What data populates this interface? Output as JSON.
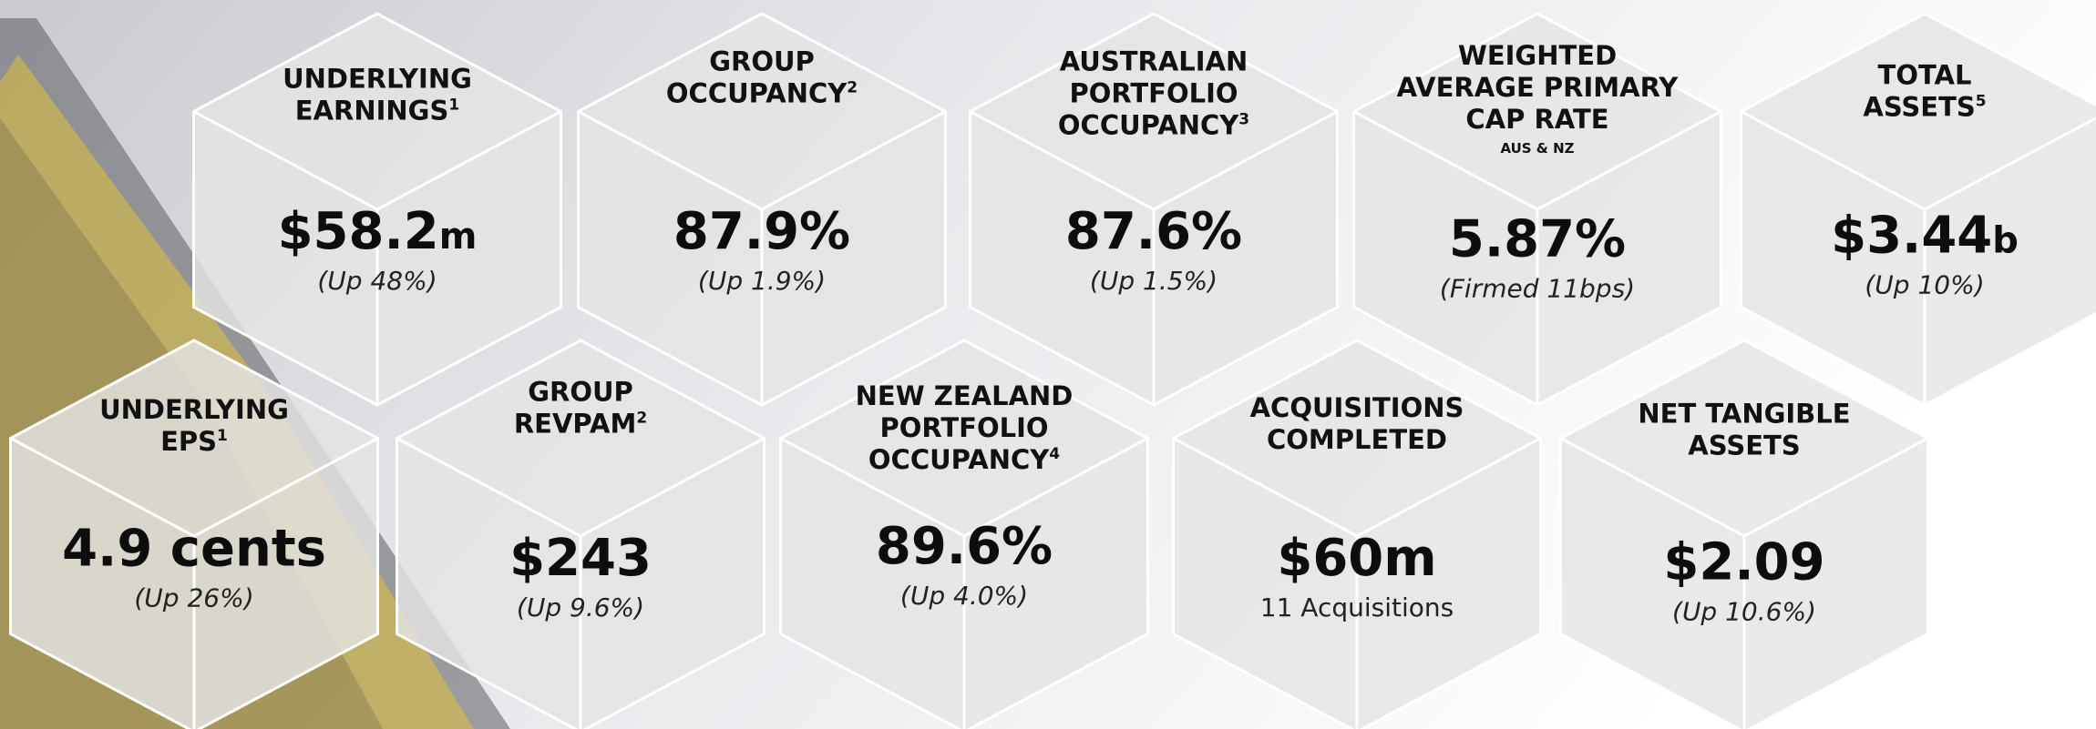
{
  "tiles": [
    {
      "title": [
        "UNDERLYING",
        "EARNINGS"
      ],
      "sup": "1",
      "value": "$58.2",
      "unit": "m",
      "note": "(Up 48%)"
    },
    {
      "title": [
        "GROUP",
        "OCCUPANCY"
      ],
      "sup": "2",
      "value": "87.9%",
      "note": "(Up 1.9%)"
    },
    {
      "title": [
        "AUSTRALIAN",
        "PORTFOLIO",
        "OCCUPANCY"
      ],
      "sup": "3",
      "value": "87.6%",
      "note": "(Up 1.5%)"
    },
    {
      "title": [
        "WEIGHTED",
        "AVERAGE PRIMARY",
        "CAP RATE"
      ],
      "small": "AUS & NZ",
      "value": "5.87%",
      "note": "(Firmed 11bps)"
    },
    {
      "title": [
        "TOTAL",
        "ASSETS"
      ],
      "sup": "5",
      "value": "$3.44",
      "unit": "b",
      "note": "(Up 10%)"
    },
    {
      "title": [
        "UNDERLYING",
        "EPS"
      ],
      "sup": "1",
      "value": "4.9 cents",
      "note": "(Up 26%)"
    },
    {
      "title": [
        "GROUP",
        "REVPAM"
      ],
      "sup": "2",
      "value": "$243",
      "note": "(Up 9.6%)"
    },
    {
      "title": [
        "NEW ZEALAND",
        "PORTFOLIO",
        "OCCUPANCY"
      ],
      "sup": "4",
      "value": "89.6%",
      "note": "(Up 4.0%)"
    },
    {
      "title": [
        "ACQUISITIONS",
        "COMPLETED"
      ],
      "value": "$60m",
      "note": "11 Acquisitions"
    },
    {
      "title": [
        "NET TANGIBLE",
        "ASSETS"
      ],
      "value": "$2.09",
      "note": "(Up 10.6%)"
    }
  ]
}
